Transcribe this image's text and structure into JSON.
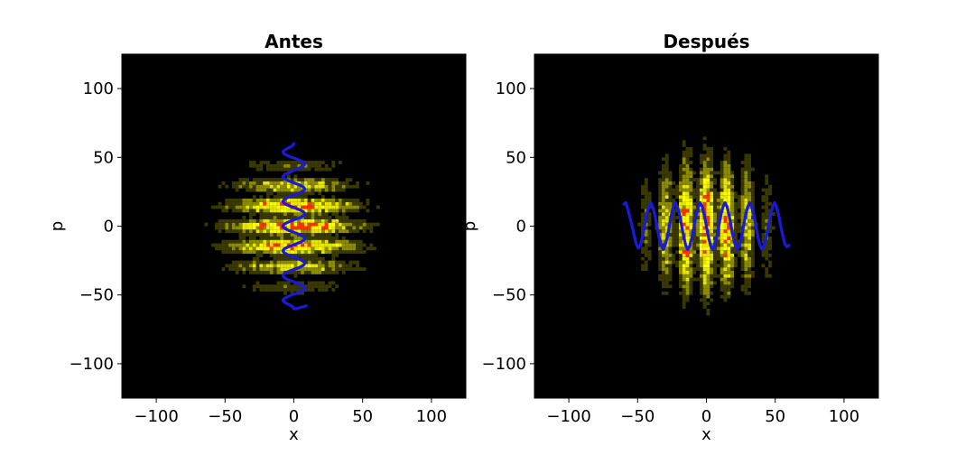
{
  "chart_data": [
    {
      "type": "heatmap",
      "title": "Antes",
      "xlabel": "x",
      "ylabel": "p",
      "xlim": [
        -125,
        125
      ],
      "ylim": [
        -125,
        125
      ],
      "xticks": [
        -100,
        -50,
        0,
        50,
        100
      ],
      "yticks": [
        -100,
        -50,
        0,
        50,
        100
      ],
      "xtick_labels": [
        "−100",
        "−50",
        "0",
        "50",
        "100"
      ],
      "ytick_labels": [
        "−100",
        "−50",
        "0",
        "50",
        "100"
      ],
      "grid": false,
      "background": "#000000",
      "colormap": [
        "#000000",
        "#3a3a00",
        "#8c8c00",
        "#e6e600",
        "#ffff00",
        "#ff3300"
      ],
      "distribution": {
        "center": [
          0,
          0
        ],
        "sigma_x": 30,
        "sigma_p": 26,
        "fringe_axis": "p",
        "fringe_period": 15
      },
      "series": [
        {
          "color": "#1a1adb",
          "points": [
            [
              0,
              60
            ],
            [
              -0.9,
              58.5
            ],
            [
              -3.5,
              57
            ],
            [
              -6.5,
              55.5
            ],
            [
              -7.9,
              54
            ],
            [
              -7,
              52.5
            ],
            [
              -4.1,
              51
            ],
            [
              0,
              49.5
            ],
            [
              4,
              48
            ],
            [
              7,
              46.5
            ],
            [
              7.9,
              45
            ],
            [
              6.5,
              43.5
            ],
            [
              3.5,
              42
            ],
            [
              0,
              40.5
            ],
            [
              -3.5,
              39
            ],
            [
              -6.9,
              37.5
            ],
            [
              -8,
              36
            ],
            [
              -6.9,
              34.5
            ],
            [
              -4,
              33
            ],
            [
              0,
              31.5
            ],
            [
              4,
              30
            ],
            [
              6.9,
              28.5
            ],
            [
              8,
              27
            ],
            [
              6.9,
              25.5
            ],
            [
              4,
              24
            ],
            [
              0,
              22.5
            ],
            [
              -4,
              21
            ],
            [
              -6.9,
              19.5
            ],
            [
              -8,
              18
            ],
            [
              -6.9,
              16.5
            ],
            [
              -4,
              15
            ],
            [
              0,
              13.5
            ],
            [
              4,
              12
            ],
            [
              6.9,
              10.5
            ],
            [
              8,
              9
            ],
            [
              6.9,
              7.5
            ],
            [
              4,
              6
            ],
            [
              0,
              4.5
            ],
            [
              -4,
              3
            ],
            [
              -6.9,
              1.5
            ],
            [
              -8,
              0
            ],
            [
              -6.9,
              -1.5
            ],
            [
              -4,
              -3
            ],
            [
              0,
              -4.5
            ],
            [
              4,
              -6
            ],
            [
              6.9,
              -7.5
            ],
            [
              8,
              -9
            ],
            [
              6.9,
              -10.5
            ],
            [
              4,
              -12
            ],
            [
              0,
              -13.5
            ],
            [
              -4,
              -15
            ],
            [
              -6.9,
              -16.5
            ],
            [
              -8,
              -18
            ],
            [
              -6.9,
              -19.5
            ],
            [
              -4,
              -21
            ],
            [
              0,
              -22.5
            ],
            [
              4,
              -24
            ],
            [
              6.9,
              -25.5
            ],
            [
              8,
              -27
            ],
            [
              6.9,
              -28.5
            ],
            [
              4,
              -30
            ],
            [
              0,
              -31.5
            ],
            [
              -4,
              -33
            ],
            [
              -6.9,
              -34.5
            ],
            [
              -8,
              -36
            ],
            [
              -6.9,
              -37.5
            ],
            [
              -4,
              -39
            ],
            [
              0,
              -40.5
            ],
            [
              4,
              -42
            ],
            [
              6.9,
              -43.5
            ],
            [
              8,
              -45
            ],
            [
              6.9,
              -46.5
            ],
            [
              4,
              -48
            ],
            [
              0,
              -49.5
            ],
            [
              -4,
              -51
            ],
            [
              -6.9,
              -52.5
            ],
            [
              -8,
              -54
            ],
            [
              -6.5,
              -55.5
            ],
            [
              -3.5,
              -57
            ],
            [
              -0.9,
              -58.5
            ],
            [
              0,
              -60
            ],
            [
              2,
              -60
            ],
            [
              5,
              -59
            ],
            [
              9,
              -58
            ]
          ]
        }
      ]
    },
    {
      "type": "heatmap",
      "title": "Después",
      "xlabel": "x",
      "ylabel": "p",
      "xlim": [
        -125,
        125
      ],
      "ylim": [
        -125,
        125
      ],
      "xticks": [
        -100,
        -50,
        0,
        50,
        100
      ],
      "yticks": [
        -100,
        -50,
        0,
        50,
        100
      ],
      "xtick_labels": [
        "−100",
        "−50",
        "0",
        "50",
        "100"
      ],
      "ytick_labels": [
        "−100",
        "−50",
        "0",
        "50",
        "100"
      ],
      "grid": false,
      "background": "#000000",
      "colormap": [
        "#000000",
        "#3a3a00",
        "#8c8c00",
        "#e6e600",
        "#ffff00",
        "#ff3300"
      ],
      "distribution": {
        "center": [
          0,
          0
        ],
        "sigma_x": 26,
        "sigma_p": 30,
        "fringe_axis": "x",
        "fringe_period": 15
      },
      "series": [
        {
          "color": "#1a1adb",
          "points": [
            [
              -60,
              16
            ],
            [
              -58.5,
              17
            ],
            [
              -57,
              12
            ],
            [
              -55.5,
              6
            ],
            [
              -54,
              0
            ],
            [
              -52.5,
              -7
            ],
            [
              -51,
              -13
            ],
            [
              -49.5,
              -16
            ],
            [
              -48,
              -14
            ],
            [
              -46.5,
              -8
            ],
            [
              -45,
              0
            ],
            [
              -43.5,
              8
            ],
            [
              -42,
              14
            ],
            [
              -40.5,
              17
            ],
            [
              -39,
              14
            ],
            [
              -37.5,
              8
            ],
            [
              -36,
              0
            ],
            [
              -34.5,
              -8
            ],
            [
              -33,
              -14
            ],
            [
              -31.5,
              -17
            ],
            [
              -30,
              -14
            ],
            [
              -28.5,
              -8
            ],
            [
              -27,
              0
            ],
            [
              -25.5,
              8
            ],
            [
              -24,
              14
            ],
            [
              -22.5,
              17
            ],
            [
              -21,
              14
            ],
            [
              -19.5,
              8
            ],
            [
              -18,
              0
            ],
            [
              -16.5,
              -8
            ],
            [
              -15,
              -14
            ],
            [
              -13.5,
              -17
            ],
            [
              -12,
              -14
            ],
            [
              -10.5,
              -8
            ],
            [
              -9,
              0
            ],
            [
              -7.5,
              8
            ],
            [
              -6,
              14
            ],
            [
              -4.5,
              17
            ],
            [
              -3,
              14
            ],
            [
              -1.5,
              8
            ],
            [
              0,
              0
            ],
            [
              1.5,
              -8
            ],
            [
              3,
              -14
            ],
            [
              4.5,
              -17
            ],
            [
              6,
              -14
            ],
            [
              7.5,
              -8
            ],
            [
              9,
              0
            ],
            [
              10.5,
              8
            ],
            [
              12,
              14
            ],
            [
              13.5,
              17
            ],
            [
              15,
              14
            ],
            [
              16.5,
              8
            ],
            [
              18,
              0
            ],
            [
              19.5,
              -8
            ],
            [
              21,
              -14
            ],
            [
              22.5,
              -17
            ],
            [
              24,
              -14
            ],
            [
              25.5,
              -8
            ],
            [
              27,
              0
            ],
            [
              28.5,
              8
            ],
            [
              30,
              14
            ],
            [
              31.5,
              17
            ],
            [
              33,
              14
            ],
            [
              34.5,
              8
            ],
            [
              36,
              0
            ],
            [
              37.5,
              -8
            ],
            [
              39,
              -14
            ],
            [
              40.5,
              -17
            ],
            [
              42,
              -14
            ],
            [
              43.5,
              -8
            ],
            [
              45,
              0
            ],
            [
              46.5,
              8
            ],
            [
              48,
              14
            ],
            [
              49.5,
              17
            ],
            [
              51,
              14
            ],
            [
              52.5,
              8
            ],
            [
              54,
              0
            ],
            [
              55.5,
              -7
            ],
            [
              57,
              -13
            ],
            [
              58.5,
              -15
            ],
            [
              60,
              -14
            ]
          ]
        }
      ]
    }
  ]
}
